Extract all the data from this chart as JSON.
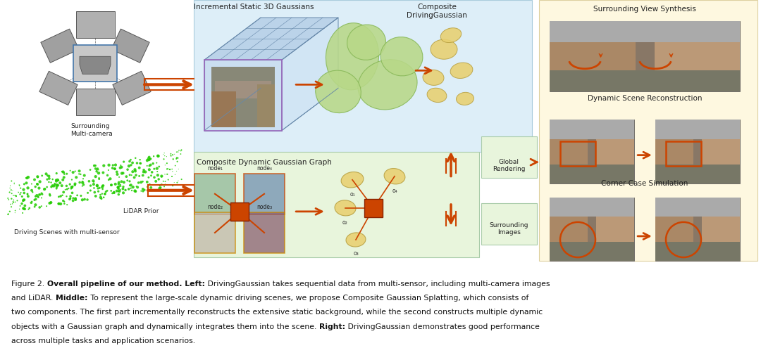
{
  "background_color": "#ffffff",
  "fig_width": 10.8,
  "fig_height": 4.95,
  "orange_color": "#cc4400",
  "green_blob_color": "#b8d888",
  "green_blob_edge": "#88b858",
  "yellow_blob_color": "#e8d070",
  "yellow_blob_edge": "#b8a040",
  "mid_top_bg": "#ddeef8",
  "mid_top_edge": "#aaccdd",
  "mid_bot_bg": "#e8f5dc",
  "mid_bot_edge": "#aaccaa",
  "right_bg": "#fef8e0",
  "right_edge": "#ddd0a0",
  "global_render_bg": "#e8f5dc",
  "global_render_edge": "#aaccaa",
  "surr_img_bg": "#e8f5dc",
  "surr_img_edge": "#aaccaa",
  "wire_face": "#c0d8f0",
  "wire_edge": "#6688aa",
  "node1_color": "#90b898",
  "node4_color": "#7090b0",
  "node2_color": "#c0b8a8",
  "node3_color": "#8a6070",
  "label_surrounding": "Surrounding\nMulti-camera",
  "label_lidar": "LiDAR Prior",
  "label_driving": "Driving Scenes with multi-sensor",
  "label_incr_static": "Incremental Static 3D Gaussians",
  "label_composite": "Composite\nDrivingGaussian",
  "label_comp_dynamic": "Composite Dynamic Gaussian Graph",
  "label_global_rendering": "Global\nRendering",
  "label_surrounding_images": "Surrounding\nImages",
  "label_surr_view": "Surrounding View Synthesis",
  "label_dynamic_scene": "Dynamic Scene Reconstruction",
  "label_corner_case": "Corner Case Simulation"
}
